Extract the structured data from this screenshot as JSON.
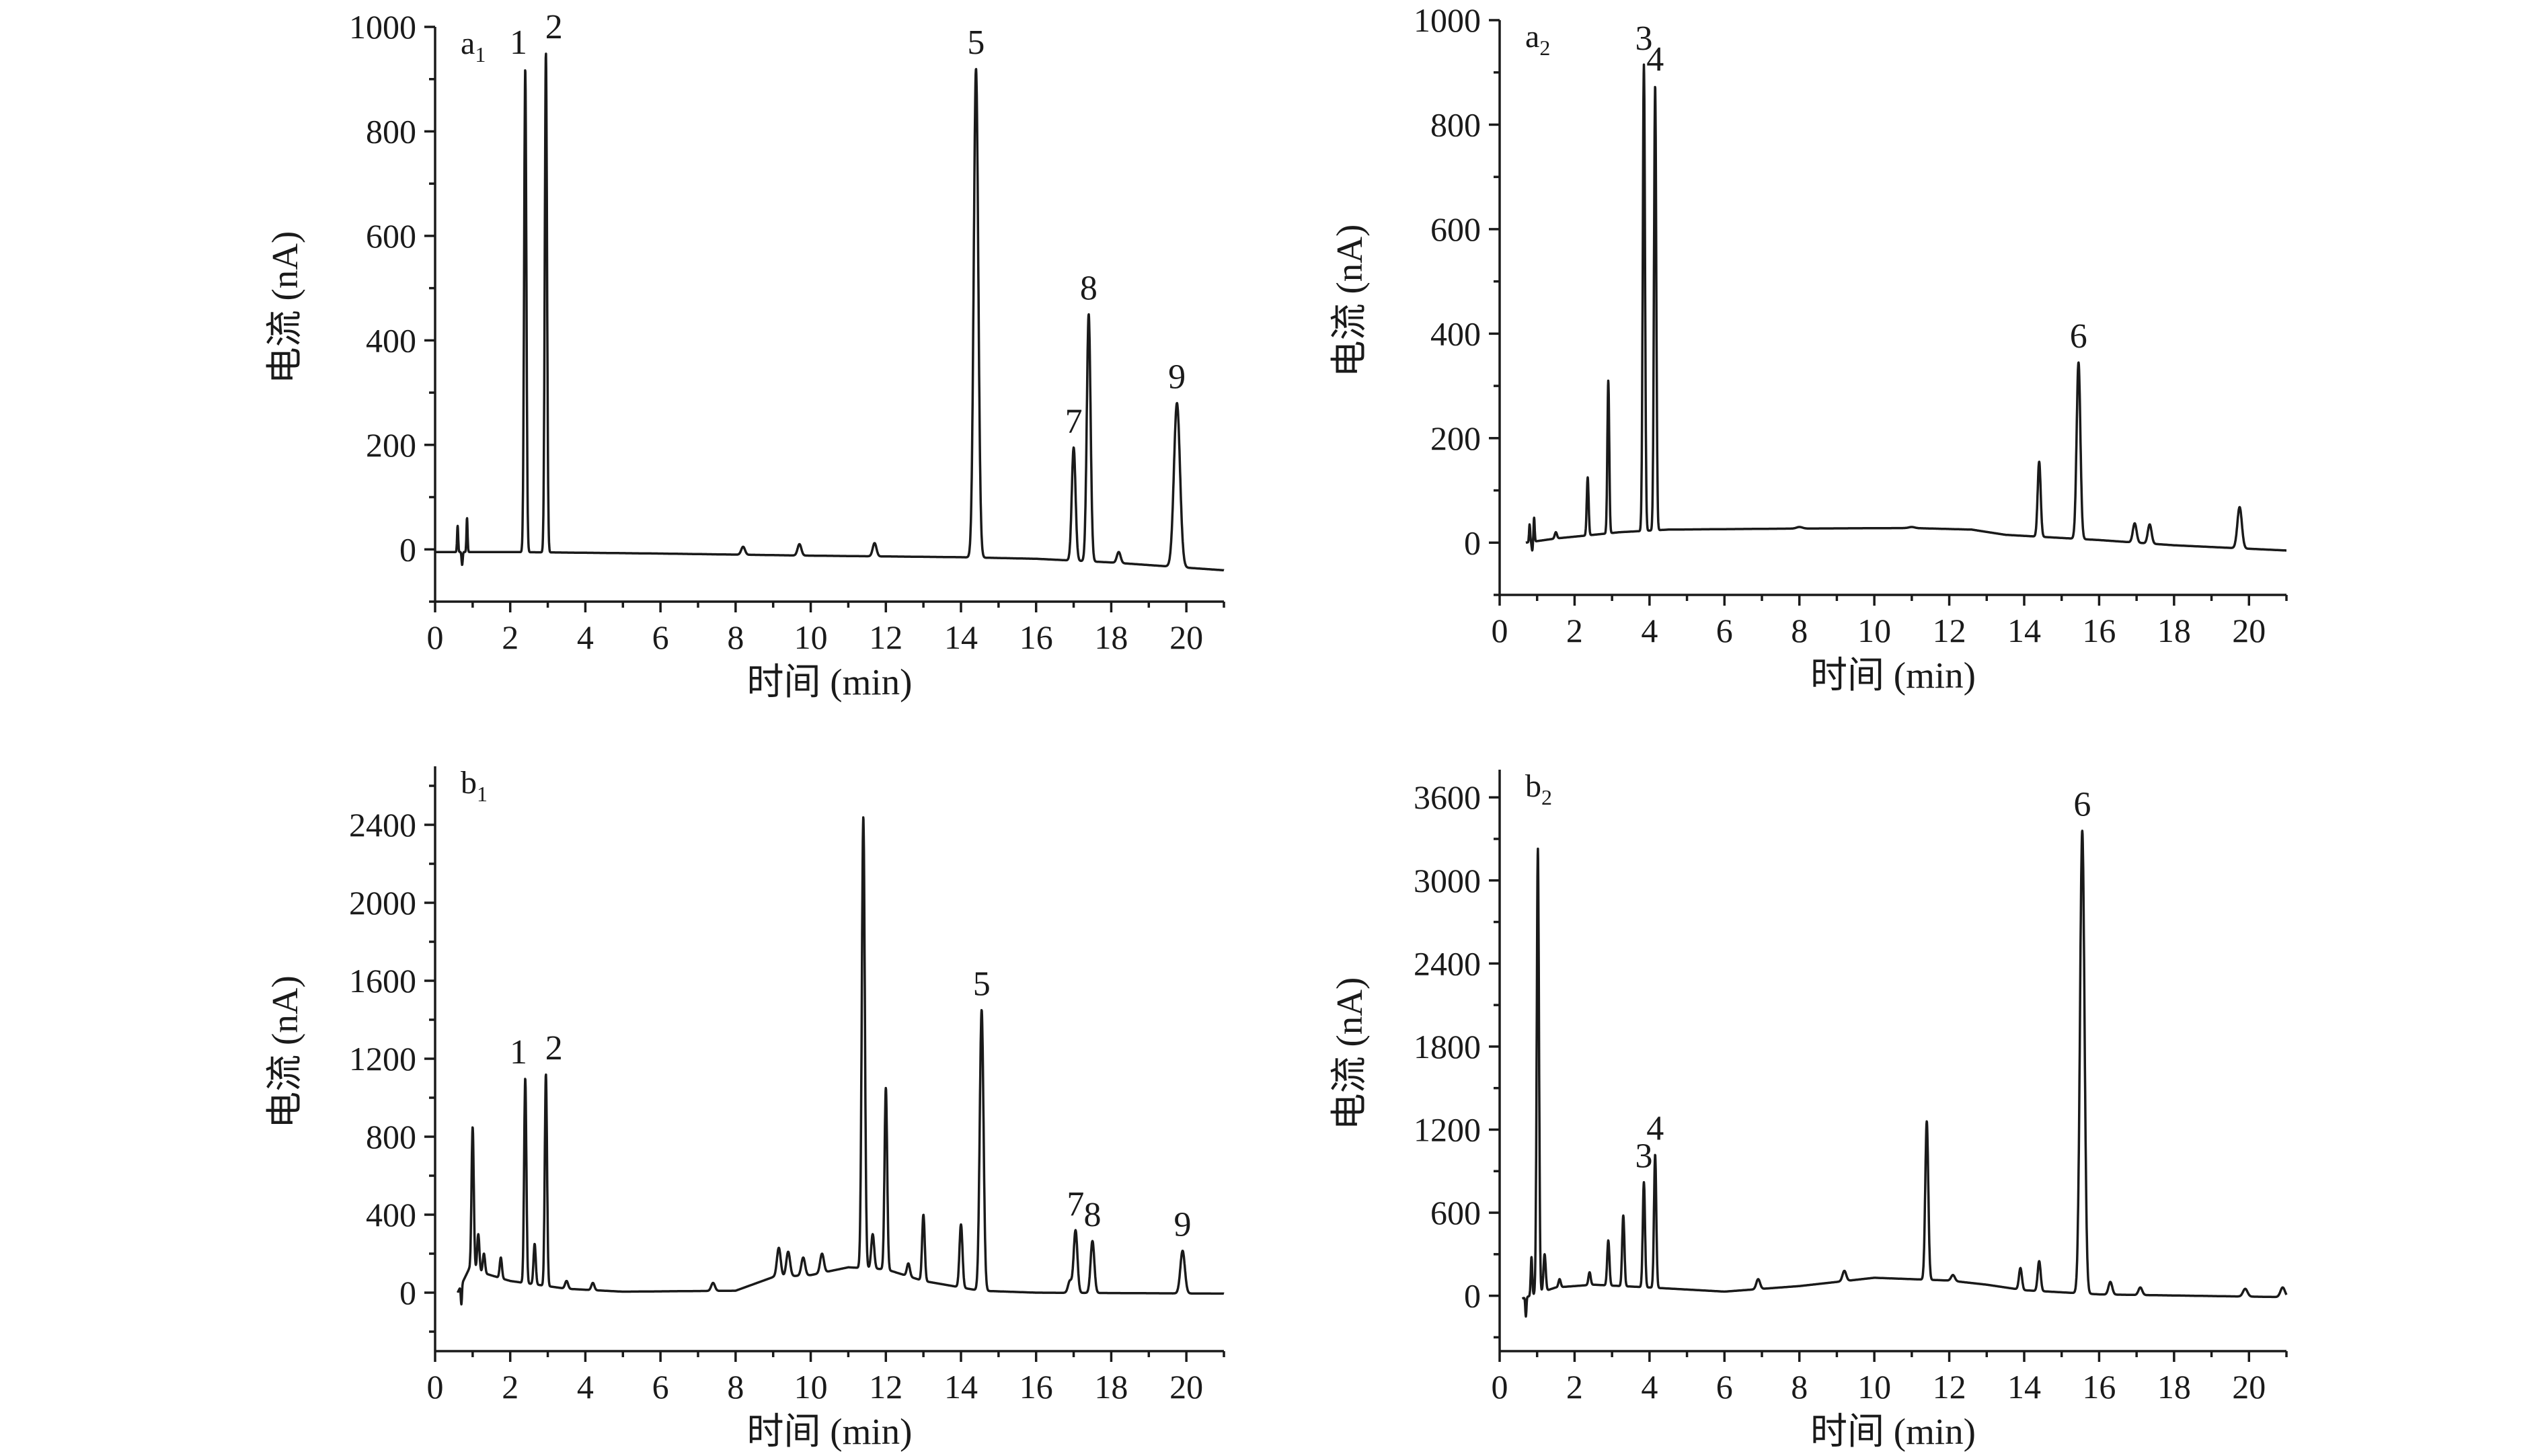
{
  "chart_data": [
    {
      "id": "a1",
      "type": "line",
      "panel_label": {
        "letter": "a",
        "sub": "1"
      },
      "xlabel": "时间 (min)",
      "ylabel": "电流 (nA)",
      "xlim": [
        0,
        21
      ],
      "ylim": [
        -100,
        1000
      ],
      "xticks": [
        0,
        2,
        4,
        6,
        8,
        10,
        12,
        14,
        16,
        18,
        20
      ],
      "yticks": [
        0,
        200,
        400,
        600,
        800,
        1000
      ],
      "baseline": [
        [
          0,
          -5
        ],
        [
          2,
          -5
        ],
        [
          6,
          -8
        ],
        [
          10,
          -12
        ],
        [
          14,
          -15
        ],
        [
          16,
          -18
        ],
        [
          18,
          -25
        ],
        [
          21,
          -40
        ]
      ],
      "peaks": [
        {
          "x": 0.6,
          "y": 45,
          "w": 0.015
        },
        {
          "x": 0.72,
          "y": -30,
          "w": 0.015
        },
        {
          "x": 0.85,
          "y": 60,
          "w": 0.015
        },
        {
          "x": 2.4,
          "y": 920,
          "w": 0.03,
          "label": "1"
        },
        {
          "x": 2.95,
          "y": 950,
          "w": 0.03,
          "label": "2"
        },
        {
          "x": 8.2,
          "y": 5,
          "w": 0.05
        },
        {
          "x": 9.7,
          "y": 10,
          "w": 0.05
        },
        {
          "x": 11.7,
          "y": 12,
          "w": 0.05
        },
        {
          "x": 14.4,
          "y": 920,
          "w": 0.06,
          "label": "5"
        },
        {
          "x": 17.0,
          "y": 195,
          "w": 0.05,
          "label": "7"
        },
        {
          "x": 17.4,
          "y": 450,
          "w": 0.05,
          "label": "8"
        },
        {
          "x": 18.2,
          "y": -5,
          "w": 0.05
        },
        {
          "x": 19.75,
          "y": 280,
          "w": 0.08,
          "label": "9"
        }
      ]
    },
    {
      "id": "a2",
      "type": "line",
      "panel_label": {
        "letter": "a",
        "sub": "2"
      },
      "xlabel": "时间 (min)",
      "ylabel": "电流 (nA)",
      "xlim": [
        0,
        21
      ],
      "ylim": [
        -100,
        1000
      ],
      "xticks": [
        0,
        2,
        4,
        6,
        8,
        10,
        12,
        14,
        16,
        18,
        20
      ],
      "yticks": [
        0,
        200,
        400,
        600,
        800,
        1000
      ],
      "baseline": [
        [
          0.7,
          0
        ],
        [
          1.5,
          8
        ],
        [
          2.5,
          15
        ],
        [
          3.2,
          20
        ],
        [
          4.5,
          25
        ],
        [
          8,
          27
        ],
        [
          11,
          28
        ],
        [
          12.6,
          25
        ],
        [
          13.5,
          15
        ],
        [
          16,
          5
        ],
        [
          18,
          -5
        ],
        [
          21,
          -15
        ]
      ],
      "peaks": [
        {
          "x": 0.8,
          "y": 35,
          "w": 0.015
        },
        {
          "x": 0.87,
          "y": -15,
          "w": 0.015
        },
        {
          "x": 0.92,
          "y": 48,
          "w": 0.015
        },
        {
          "x": 1.5,
          "y": 20,
          "w": 0.03
        },
        {
          "x": 2.35,
          "y": 125,
          "w": 0.025
        },
        {
          "x": 2.9,
          "y": 310,
          "w": 0.025
        },
        {
          "x": 3.85,
          "y": 915,
          "w": 0.03,
          "label": "3"
        },
        {
          "x": 4.15,
          "y": 875,
          "w": 0.03,
          "label": "4"
        },
        {
          "x": 8.0,
          "y": 30,
          "w": 0.08
        },
        {
          "x": 11.0,
          "y": 30,
          "w": 0.08
        },
        {
          "x": 14.4,
          "y": 155,
          "w": 0.04
        },
        {
          "x": 15.45,
          "y": 345,
          "w": 0.05,
          "label": "6"
        },
        {
          "x": 16.95,
          "y": 37,
          "w": 0.05
        },
        {
          "x": 17.35,
          "y": 35,
          "w": 0.05
        },
        {
          "x": 19.75,
          "y": 68,
          "w": 0.06
        }
      ]
    },
    {
      "id": "b1",
      "type": "line",
      "panel_label": {
        "letter": "b",
        "sub": "1"
      },
      "xlabel": "时间 (min)",
      "ylabel": "电流 (nA)",
      "xlim": [
        0,
        21
      ],
      "ylim": [
        -300,
        2700
      ],
      "xticks": [
        0,
        2,
        4,
        6,
        8,
        10,
        12,
        14,
        16,
        18,
        20
      ],
      "yticks": [
        0,
        400,
        800,
        1200,
        1600,
        2000,
        2400
      ],
      "baseline": [
        [
          0.6,
          0
        ],
        [
          0.9,
          120
        ],
        [
          1.3,
          100
        ],
        [
          2,
          60
        ],
        [
          3.5,
          20
        ],
        [
          5,
          5
        ],
        [
          8,
          10
        ],
        [
          9,
          80
        ],
        [
          10,
          90
        ],
        [
          11,
          130
        ],
        [
          12,
          120
        ],
        [
          13,
          60
        ],
        [
          14.5,
          10
        ],
        [
          16,
          0
        ],
        [
          21,
          -5
        ]
      ],
      "peaks": [
        {
          "x": 0.7,
          "y": -60,
          "w": 0.015
        },
        {
          "x": 1.0,
          "y": 850,
          "w": 0.03
        },
        {
          "x": 1.15,
          "y": 300,
          "w": 0.03
        },
        {
          "x": 1.3,
          "y": 200,
          "w": 0.03
        },
        {
          "x": 1.75,
          "y": 180,
          "w": 0.03
        },
        {
          "x": 2.4,
          "y": 1100,
          "w": 0.03,
          "label": "1"
        },
        {
          "x": 2.65,
          "y": 250,
          "w": 0.03
        },
        {
          "x": 2.95,
          "y": 1120,
          "w": 0.03,
          "label": "2"
        },
        {
          "x": 3.5,
          "y": 60,
          "w": 0.04
        },
        {
          "x": 4.2,
          "y": 50,
          "w": 0.04
        },
        {
          "x": 7.4,
          "y": 50,
          "w": 0.05
        },
        {
          "x": 9.15,
          "y": 230,
          "w": 0.05
        },
        {
          "x": 9.4,
          "y": 210,
          "w": 0.05
        },
        {
          "x": 9.8,
          "y": 180,
          "w": 0.05
        },
        {
          "x": 10.3,
          "y": 200,
          "w": 0.05
        },
        {
          "x": 11.4,
          "y": 2440,
          "w": 0.04
        },
        {
          "x": 11.65,
          "y": 300,
          "w": 0.04
        },
        {
          "x": 12.0,
          "y": 1050,
          "w": 0.035
        },
        {
          "x": 12.6,
          "y": 150,
          "w": 0.04
        },
        {
          "x": 13.0,
          "y": 400,
          "w": 0.035
        },
        {
          "x": 14.0,
          "y": 350,
          "w": 0.04
        },
        {
          "x": 14.55,
          "y": 1450,
          "w": 0.05,
          "label": "5"
        },
        {
          "x": 16.9,
          "y": 60,
          "w": 0.05
        },
        {
          "x": 17.05,
          "y": 320,
          "w": 0.05,
          "label": "7"
        },
        {
          "x": 17.5,
          "y": 265,
          "w": 0.05,
          "label": "8"
        },
        {
          "x": 19.9,
          "y": 215,
          "w": 0.06,
          "label": "9"
        }
      ]
    },
    {
      "id": "b2",
      "type": "line",
      "panel_label": {
        "letter": "b",
        "sub": "2"
      },
      "xlabel": "时间 (min)",
      "ylabel": "电流 (nA)",
      "xlim": [
        0,
        21
      ],
      "ylim": [
        -400,
        3800
      ],
      "xticks": [
        0,
        2,
        4,
        6,
        8,
        10,
        12,
        14,
        16,
        18,
        20
      ],
      "yticks": [
        0,
        600,
        1200,
        1800,
        2400,
        3000,
        3600
      ],
      "baseline": [
        [
          0.6,
          -20
        ],
        [
          1.5,
          60
        ],
        [
          2.5,
          80
        ],
        [
          4,
          60
        ],
        [
          6,
          30
        ],
        [
          8,
          70
        ],
        [
          10,
          130
        ],
        [
          11,
          120
        ],
        [
          12,
          110
        ],
        [
          13,
          80
        ],
        [
          14,
          40
        ],
        [
          16,
          10
        ],
        [
          21,
          -10
        ]
      ],
      "peaks": [
        {
          "x": 0.7,
          "y": -150,
          "w": 0.015
        },
        {
          "x": 0.85,
          "y": 280,
          "w": 0.02
        },
        {
          "x": 1.02,
          "y": 3230,
          "w": 0.03
        },
        {
          "x": 1.2,
          "y": 300,
          "w": 0.03
        },
        {
          "x": 1.6,
          "y": 120,
          "w": 0.03
        },
        {
          "x": 2.4,
          "y": 170,
          "w": 0.03
        },
        {
          "x": 2.9,
          "y": 400,
          "w": 0.03
        },
        {
          "x": 3.3,
          "y": 580,
          "w": 0.03
        },
        {
          "x": 3.85,
          "y": 820,
          "w": 0.03,
          "label": "3"
        },
        {
          "x": 4.15,
          "y": 1020,
          "w": 0.03,
          "label": "4"
        },
        {
          "x": 6.9,
          "y": 120,
          "w": 0.05
        },
        {
          "x": 9.2,
          "y": 180,
          "w": 0.05
        },
        {
          "x": 11.4,
          "y": 1260,
          "w": 0.04
        },
        {
          "x": 12.1,
          "y": 150,
          "w": 0.05
        },
        {
          "x": 13.9,
          "y": 200,
          "w": 0.04
        },
        {
          "x": 14.4,
          "y": 250,
          "w": 0.04
        },
        {
          "x": 15.55,
          "y": 3360,
          "w": 0.06,
          "label": "6"
        },
        {
          "x": 16.3,
          "y": 100,
          "w": 0.05
        },
        {
          "x": 17.1,
          "y": 60,
          "w": 0.05
        },
        {
          "x": 19.9,
          "y": 50,
          "w": 0.06
        },
        {
          "x": 20.9,
          "y": 60,
          "w": 0.06
        }
      ]
    }
  ]
}
